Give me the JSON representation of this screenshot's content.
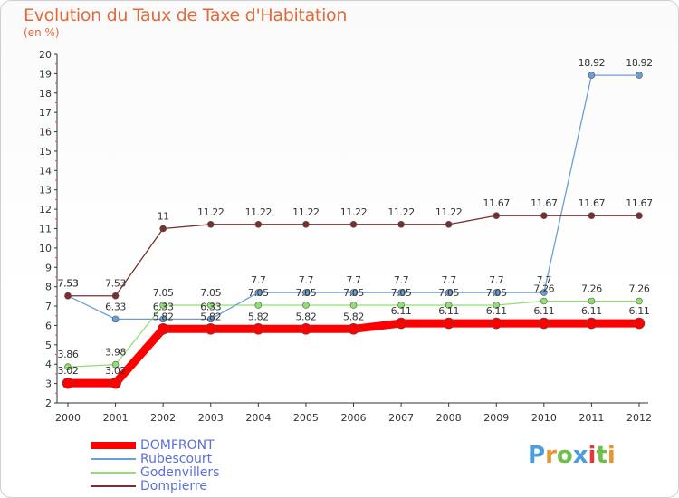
{
  "title": "Evolution du Taux de Taxe d'Habitation",
  "subtitle": "(en %)",
  "logo": {
    "text": "Proxiti",
    "colors": [
      "#4a9de0",
      "#e8962e",
      "#6cc04a",
      "#4a9de0",
      "#e03a3a",
      "#6cc04a",
      "#e8962e"
    ]
  },
  "chart_data": {
    "type": "line",
    "x": [
      2000,
      2001,
      2002,
      2003,
      2004,
      2005,
      2006,
      2007,
      2008,
      2009,
      2010,
      2011,
      2012
    ],
    "ylim": [
      2,
      20
    ],
    "yticks": [
      2,
      3,
      4,
      5,
      6,
      7,
      8,
      9,
      10,
      11,
      12,
      13,
      14,
      15,
      16,
      17,
      18,
      19,
      20
    ],
    "grid": false,
    "legend_position": "bottom-left",
    "series": [
      {
        "name": "DOMFRONT",
        "color": "#ff0000",
        "width": 9,
        "values": [
          3.02,
          3.02,
          5.82,
          5.82,
          5.82,
          5.82,
          5.82,
          6.11,
          6.11,
          6.11,
          6.11,
          6.11,
          6.11
        ],
        "labels": [
          "3.02",
          "3.02",
          "5.82",
          "5.82",
          "5.82",
          "5.82",
          "5.82",
          "6.11",
          "6.11",
          "6.11",
          "6.11",
          "6.11",
          "6.11"
        ]
      },
      {
        "name": "Rubescourt",
        "color": "#6a9fd4",
        "width": 1.3,
        "values": [
          7.53,
          6.33,
          6.33,
          6.33,
          7.7,
          7.7,
          7.7,
          7.7,
          7.7,
          7.7,
          7.7,
          18.92,
          18.92
        ],
        "labels": [
          "7.53",
          "6.33",
          "6.33",
          "6.33",
          "7.7",
          "7.7",
          "7.7",
          "7.7",
          "7.7",
          "7.7",
          "7.7",
          "18.92",
          "18.92"
        ]
      },
      {
        "name": "Godenvillers",
        "color": "#90e070",
        "width": 1.3,
        "values": [
          3.86,
          3.98,
          7.05,
          7.05,
          7.05,
          7.05,
          7.05,
          7.05,
          7.05,
          7.05,
          7.26,
          7.26,
          7.26
        ],
        "labels": [
          "3.86",
          "3.98",
          "7.05",
          "7.05",
          "7.05",
          "7.05",
          "7.05",
          "7.05",
          "7.05",
          "7.05",
          "7.26",
          "7.26",
          "7.26"
        ]
      },
      {
        "name": "Dompierre",
        "color": "#7a3030",
        "width": 1.3,
        "values": [
          7.53,
          7.53,
          11,
          11.22,
          11.22,
          11.22,
          11.22,
          11.22,
          11.22,
          11.67,
          11.67,
          11.67,
          11.67
        ],
        "labels": [
          "7.53",
          "7.53",
          "11",
          "11.22",
          "11.22",
          "11.22",
          "11.22",
          "11.22",
          "11.22",
          "11.67",
          "11.67",
          "11.67",
          "11.67"
        ]
      }
    ]
  }
}
